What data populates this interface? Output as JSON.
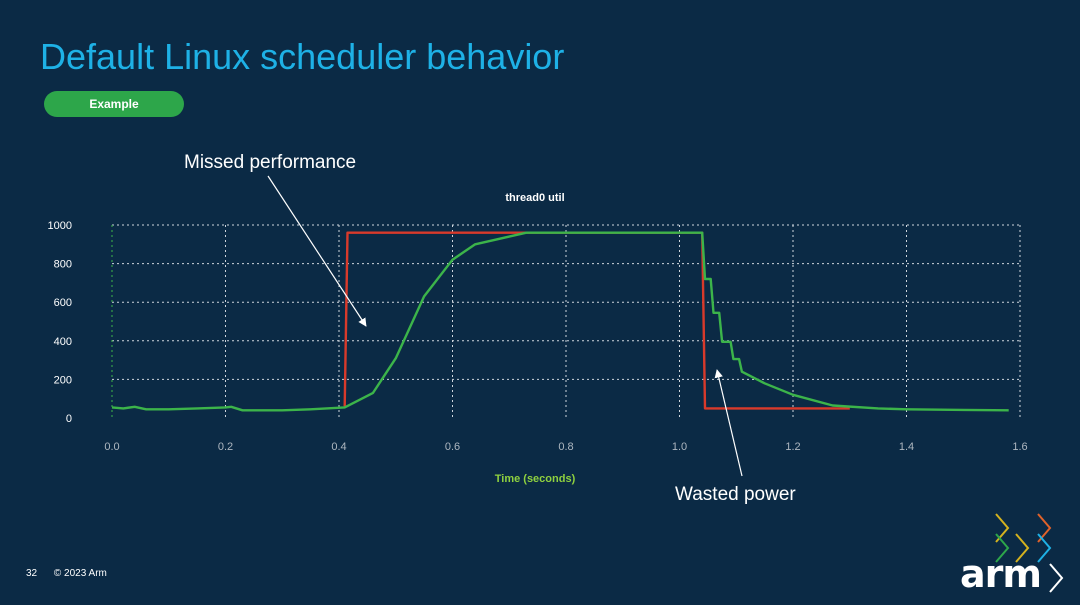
{
  "slide": {
    "title": "Default Linux scheduler behavior",
    "badge": "Example",
    "page_number": "32",
    "copyright": "© 2023 Arm",
    "logo": "arm"
  },
  "annotations": [
    {
      "text": "Missed performance"
    },
    {
      "text": "Wasted power"
    }
  ],
  "colors": {
    "background": "#0b2a45",
    "title": "#1eb1e6",
    "badge": "#2da64a",
    "red_series": "#d93a2b",
    "green_series": "#3cb44a"
  },
  "chart_data": {
    "type": "line",
    "title": "thread0 util",
    "xlabel": "Time (seconds)",
    "ylabel": "",
    "xlim": [
      0,
      1.6
    ],
    "ylim": [
      0,
      1000
    ],
    "xticks": [
      "0.0",
      "0.2",
      "0.4",
      "0.6",
      "0.8",
      "1.0",
      "1.2",
      "1.4",
      "1.6"
    ],
    "yticks": [
      "0",
      "200",
      "400",
      "600",
      "800",
      "1000"
    ],
    "grid": true,
    "series": [
      {
        "color": "#d93a2b",
        "points": [
          [
            0.41,
            60
          ],
          [
            0.415,
            960
          ],
          [
            1.04,
            960
          ],
          [
            1.045,
            50
          ],
          [
            1.3,
            50
          ]
        ]
      },
      {
        "color": "#3cb44a",
        "points": [
          [
            0.0,
            55
          ],
          [
            0.02,
            50
          ],
          [
            0.04,
            58
          ],
          [
            0.06,
            45
          ],
          [
            0.1,
            45
          ],
          [
            0.15,
            50
          ],
          [
            0.2,
            55
          ],
          [
            0.21,
            58
          ],
          [
            0.23,
            40
          ],
          [
            0.3,
            40
          ],
          [
            0.35,
            45
          ],
          [
            0.41,
            55
          ],
          [
            0.46,
            130
          ],
          [
            0.5,
            310
          ],
          [
            0.55,
            630
          ],
          [
            0.6,
            820
          ],
          [
            0.64,
            900
          ],
          [
            0.7,
            940
          ],
          [
            0.73,
            960
          ],
          [
            1.04,
            960
          ],
          [
            1.045,
            720
          ],
          [
            1.055,
            720
          ],
          [
            1.06,
            545
          ],
          [
            1.07,
            545
          ],
          [
            1.075,
            395
          ],
          [
            1.09,
            395
          ],
          [
            1.095,
            305
          ],
          [
            1.105,
            305
          ],
          [
            1.11,
            240
          ],
          [
            1.15,
            180
          ],
          [
            1.2,
            120
          ],
          [
            1.27,
            65
          ],
          [
            1.35,
            50
          ],
          [
            1.4,
            45
          ],
          [
            1.5,
            42
          ],
          [
            1.58,
            40
          ]
        ]
      }
    ]
  }
}
